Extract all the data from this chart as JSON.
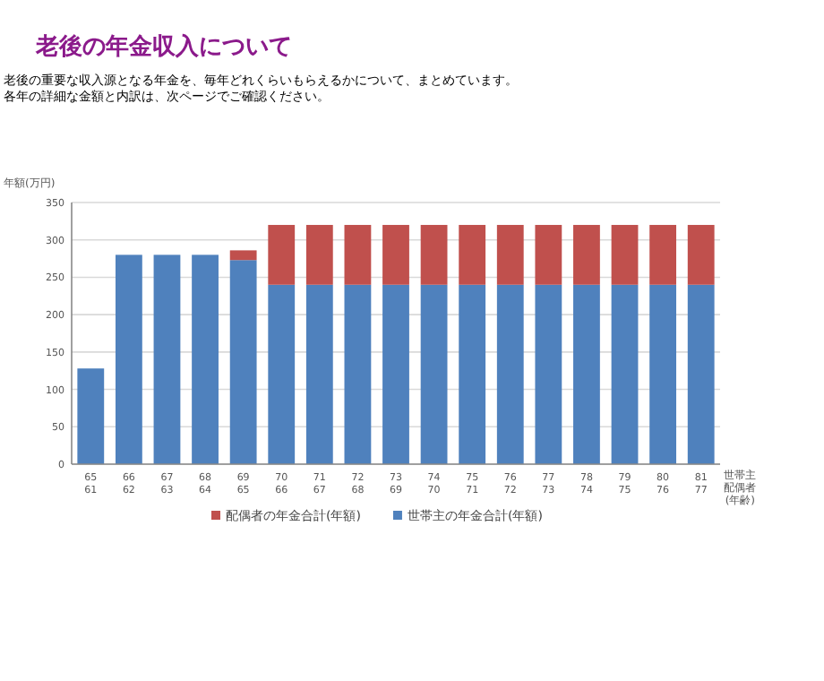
{
  "chart_data": {
    "type": "bar",
    "title": "老後の年金収入について",
    "subtitle": "老後の重要な収入源となる年金を、毎年どれくらいもらえるかについて、まとめています。",
    "annotations": [
      "各年の詳細な金額と内訳は、次ページでご確認ください。"
    ],
    "ylabel": "年額(万円)",
    "xlabel": "世帯主配偶者(年齢)",
    "categories": [
      "65\n61",
      "66\n62",
      "67\n63",
      "68\n64",
      "69\n65",
      "70\n66",
      "71\n67",
      "72\n68",
      "73\n69",
      "74\n70",
      "75\n71",
      "76\n72",
      "77\n73",
      "78\n74",
      "79\n75",
      "80\n76",
      "81\n77"
    ],
    "stacked": true,
    "series": [
      {
        "name": "世帯主の年金合計(年額)",
        "color": "#4f81bd",
        "values": [
          128,
          280,
          280,
          280,
          273,
          240,
          240,
          240,
          240,
          240,
          240,
          240,
          240,
          240,
          240,
          240,
          240
        ]
      },
      {
        "name": "配偶者の年金合計(年額)",
        "color": "#c0504d",
        "values": [
          0,
          0,
          0,
          0,
          13,
          80,
          80,
          80,
          80,
          80,
          80,
          80,
          80,
          80,
          80,
          80,
          80
        ]
      }
    ],
    "ylim": [
      0,
      350
    ],
    "yticks": [
      0,
      50,
      100,
      150,
      200,
      250,
      300,
      350
    ],
    "grid": "y",
    "legend": "bottom"
  }
}
